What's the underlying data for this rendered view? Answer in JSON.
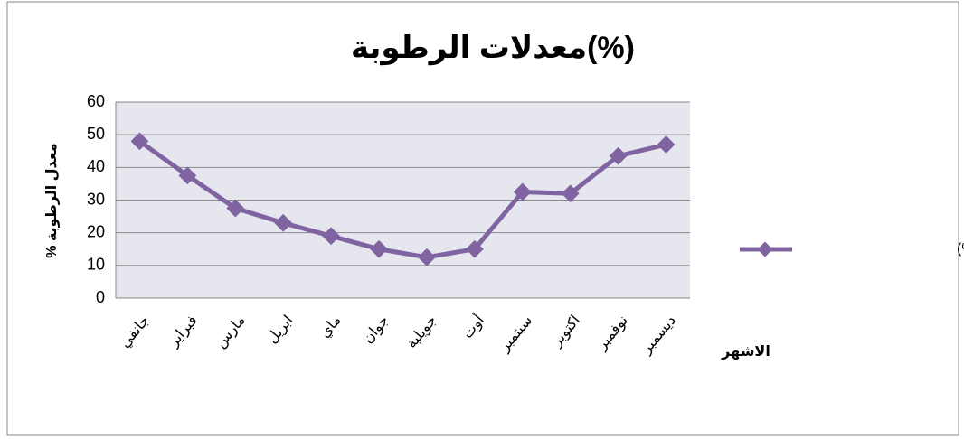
{
  "chart_data": {
    "type": "line",
    "title": "معدلات الرطوبة(%)",
    "y_label": "% معدل الرطوبة",
    "x_label": "الاشهر",
    "categories": [
      "جانفي",
      "فبراير",
      "مارس",
      "ابريل",
      "ماي",
      "جوان",
      "جويلية",
      "أوت",
      "سبتمبر",
      "اكتوبر",
      "نوفمبر",
      "ديسمبر"
    ],
    "series": [
      {
        "name": "معدلات الرطوبة(%)",
        "color": "#8064a2",
        "values": [
          48,
          37.5,
          27.5,
          23,
          19,
          15,
          12.5,
          15,
          32.5,
          32,
          43.5,
          47
        ]
      }
    ],
    "ylim": [
      0,
      60
    ],
    "yticks": [
      0,
      10,
      20,
      30,
      40,
      50,
      60
    ],
    "grid": true,
    "legend": "right"
  }
}
